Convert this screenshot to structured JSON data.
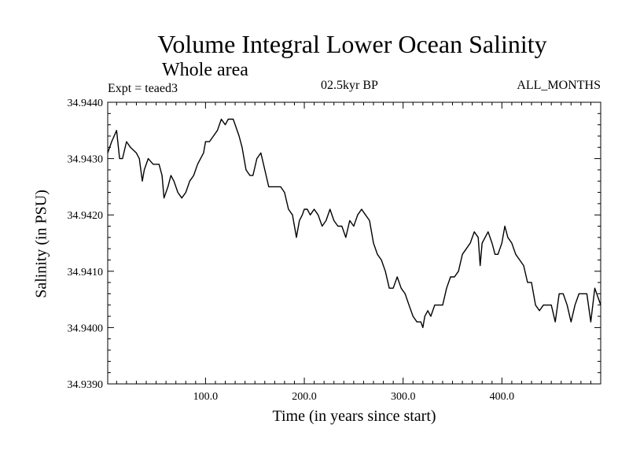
{
  "chart_data": {
    "type": "line",
    "title": "Volume Integral Lower Ocean Salinity",
    "subtitle": "Whole area",
    "experiment": "Expt = teaed3",
    "period": "02.5kyr BP",
    "months": "ALL_MONTHS",
    "xlabel": "Time (in years since start)",
    "ylabel": "Salinity (in PSU)",
    "xlim": [
      1,
      500
    ],
    "ylim": [
      34.939,
      34.944
    ],
    "xticks": [
      100,
      200,
      300,
      400
    ],
    "xtick_labels": [
      "100.0",
      "200.0",
      "300.0",
      "400.0"
    ],
    "yticks": [
      34.939,
      34.94,
      34.941,
      34.942,
      34.943,
      34.944
    ],
    "ytick_labels": [
      "34.9390",
      "34.9400",
      "34.9410",
      "34.9420",
      "34.9430",
      "34.9440"
    ],
    "grid": false,
    "series": [
      {
        "name": "Salinity",
        "x": [
          1,
          5,
          10,
          13,
          16,
          20,
          24,
          30,
          33,
          36,
          38,
          42,
          47,
          50,
          53,
          56,
          58,
          62,
          65,
          68,
          72,
          76,
          80,
          84,
          88,
          92,
          95,
          98,
          100,
          104,
          108,
          112,
          116,
          120,
          123,
          125,
          128,
          130,
          134,
          137,
          141,
          145,
          148,
          152,
          156,
          160,
          164,
          168,
          172,
          176,
          180,
          184,
          188,
          192,
          195,
          198,
          200,
          203,
          206,
          210,
          214,
          218,
          222,
          226,
          230,
          234,
          238,
          242,
          246,
          250,
          254,
          258,
          262,
          266,
          270,
          274,
          278,
          282,
          286,
          290,
          294,
          298,
          302,
          306,
          310,
          314,
          318,
          320,
          322,
          325,
          328,
          332,
          336,
          340,
          344,
          348,
          352,
          356,
          360,
          364,
          368,
          372,
          376,
          378,
          380,
          383,
          386,
          390,
          393,
          396,
          400,
          403,
          406,
          410,
          414,
          418,
          422,
          426,
          430,
          434,
          438,
          442,
          446,
          450,
          454,
          458,
          462,
          466,
          470,
          474,
          478,
          482,
          486,
          490,
          494,
          498,
          500
        ],
        "y": [
          34.9431,
          34.9433,
          34.9435,
          34.943,
          34.943,
          34.9433,
          34.9432,
          34.9431,
          34.943,
          34.9426,
          34.9428,
          34.943,
          34.9429,
          34.9429,
          34.9429,
          34.9427,
          34.9423,
          34.9425,
          34.9427,
          34.9426,
          34.9424,
          34.9423,
          34.9424,
          34.9426,
          34.9427,
          34.9429,
          34.943,
          34.9431,
          34.9433,
          34.9433,
          34.9434,
          34.9435,
          34.9437,
          34.9436,
          34.9437,
          34.9437,
          34.9437,
          34.9436,
          34.9434,
          34.9432,
          34.9428,
          34.9427,
          34.9427,
          34.943,
          34.9431,
          34.9428,
          34.9425,
          34.9425,
          34.9425,
          34.9425,
          34.9424,
          34.9421,
          34.942,
          34.9416,
          34.9419,
          34.942,
          34.9421,
          34.9421,
          34.942,
          34.9421,
          34.942,
          34.9418,
          34.9419,
          34.9421,
          34.9419,
          34.9418,
          34.9418,
          34.9416,
          34.9419,
          34.9418,
          34.942,
          34.9421,
          34.942,
          34.9419,
          34.9415,
          34.9413,
          34.9412,
          34.941,
          34.9407,
          34.9407,
          34.9409,
          34.9407,
          34.9406,
          34.9404,
          34.9402,
          34.9401,
          34.9401,
          34.94,
          34.9402,
          34.9403,
          34.9402,
          34.9404,
          34.9404,
          34.9404,
          34.9407,
          34.9409,
          34.9409,
          34.941,
          34.9413,
          34.9414,
          34.9415,
          34.9417,
          34.9416,
          34.9411,
          34.9415,
          34.9416,
          34.9417,
          34.9415,
          34.9413,
          34.9413,
          34.9415,
          34.9418,
          34.9416,
          34.9415,
          34.9413,
          34.9412,
          34.9411,
          34.9408,
          34.9408,
          34.9404,
          34.9403,
          34.9404,
          34.9404,
          34.9404,
          34.9401,
          34.9406,
          34.9406,
          34.9404,
          34.9401,
          34.9404,
          34.9406,
          34.9406,
          34.9406,
          34.9401,
          34.9407,
          34.9405,
          34.9404
        ]
      }
    ]
  }
}
